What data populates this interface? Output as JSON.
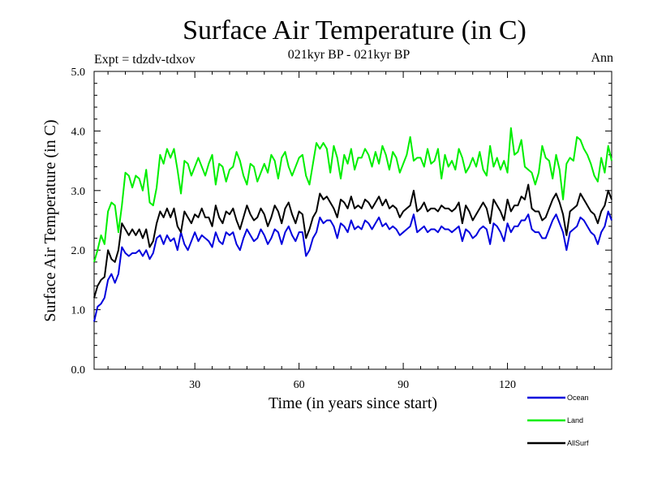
{
  "chart_data": {
    "type": "line",
    "title": "Surface Air Temperature (in C)",
    "subtitle": "021kyr BP - 021kyr BP",
    "left_note": "Expt = tdzdv-tdxov",
    "right_note": "Ann",
    "xlabel": "Time (in years since start)",
    "ylabel": "Surface Air Temperature (in C)",
    "xlim": [
      1,
      150
    ],
    "ylim": [
      0,
      5
    ],
    "xticks": [
      30,
      60,
      90,
      120
    ],
    "xtick_labels": [
      "30",
      "60",
      "90",
      "120"
    ],
    "yticks": [
      0,
      1,
      2,
      3,
      4,
      5
    ],
    "ytick_labels": [
      "0.0",
      "1.0",
      "2.0",
      "3.0",
      "4.0",
      "5.0"
    ],
    "x": [
      1,
      2,
      3,
      4,
      5,
      6,
      7,
      8,
      9,
      10,
      11,
      12,
      13,
      14,
      15,
      16,
      17,
      18,
      19,
      20,
      21,
      22,
      23,
      24,
      25,
      26,
      27,
      28,
      29,
      30,
      31,
      32,
      33,
      34,
      35,
      36,
      37,
      38,
      39,
      40,
      41,
      42,
      43,
      44,
      45,
      46,
      47,
      48,
      49,
      50,
      51,
      52,
      53,
      54,
      55,
      56,
      57,
      58,
      59,
      60,
      61,
      62,
      63,
      64,
      65,
      66,
      67,
      68,
      69,
      70,
      71,
      72,
      73,
      74,
      75,
      76,
      77,
      78,
      79,
      80,
      81,
      82,
      83,
      84,
      85,
      86,
      87,
      88,
      89,
      90,
      91,
      92,
      93,
      94,
      95,
      96,
      97,
      98,
      99,
      100,
      101,
      102,
      103,
      104,
      105,
      106,
      107,
      108,
      109,
      110,
      111,
      112,
      113,
      114,
      115,
      116,
      117,
      118,
      119,
      120,
      121,
      122,
      123,
      124,
      125,
      126,
      127,
      128,
      129,
      130,
      131,
      132,
      133,
      134,
      135,
      136,
      137,
      138,
      139,
      140,
      141,
      142,
      143,
      144,
      145,
      146,
      147,
      148,
      149,
      150
    ],
    "series": [
      {
        "name": "Ocean",
        "color": "#0000dd",
        "values": [
          0.8,
          1.05,
          1.1,
          1.2,
          1.5,
          1.6,
          1.45,
          1.6,
          2.05,
          1.95,
          1.9,
          1.95,
          1.95,
          2.0,
          1.9,
          2.0,
          1.85,
          1.95,
          2.2,
          2.25,
          2.1,
          2.25,
          2.15,
          2.2,
          2.0,
          2.3,
          2.1,
          2.0,
          2.15,
          2.3,
          2.15,
          2.25,
          2.2,
          2.15,
          2.05,
          2.3,
          2.15,
          2.1,
          2.3,
          2.25,
          2.3,
          2.1,
          2.0,
          2.2,
          2.35,
          2.25,
          2.15,
          2.2,
          2.35,
          2.25,
          2.1,
          2.2,
          2.35,
          2.3,
          2.1,
          2.3,
          2.4,
          2.25,
          2.15,
          2.3,
          2.3,
          1.9,
          2.0,
          2.2,
          2.3,
          2.55,
          2.45,
          2.5,
          2.5,
          2.4,
          2.2,
          2.45,
          2.4,
          2.3,
          2.5,
          2.35,
          2.4,
          2.35,
          2.5,
          2.45,
          2.35,
          2.45,
          2.55,
          2.4,
          2.45,
          2.35,
          2.4,
          2.35,
          2.25,
          2.3,
          2.35,
          2.4,
          2.6,
          2.3,
          2.35,
          2.4,
          2.3,
          2.35,
          2.35,
          2.3,
          2.4,
          2.35,
          2.35,
          2.3,
          2.35,
          2.4,
          2.15,
          2.35,
          2.3,
          2.2,
          2.25,
          2.35,
          2.4,
          2.35,
          2.1,
          2.45,
          2.4,
          2.3,
          2.15,
          2.45,
          2.3,
          2.4,
          2.4,
          2.5,
          2.5,
          2.6,
          2.35,
          2.3,
          2.3,
          2.2,
          2.2,
          2.35,
          2.5,
          2.6,
          2.45,
          2.3,
          2.0,
          2.3,
          2.35,
          2.4,
          2.55,
          2.5,
          2.4,
          2.3,
          2.25,
          2.1,
          2.3,
          2.4,
          2.65,
          2.5
        ]
      },
      {
        "name": "Land",
        "color": "#00ee00",
        "values": [
          1.8,
          2.0,
          2.25,
          2.1,
          2.65,
          2.8,
          2.75,
          2.3,
          2.75,
          3.3,
          3.25,
          3.05,
          3.25,
          3.2,
          3.0,
          3.35,
          2.8,
          2.75,
          3.05,
          3.6,
          3.45,
          3.7,
          3.55,
          3.7,
          3.35,
          2.95,
          3.5,
          3.45,
          3.25,
          3.4,
          3.55,
          3.4,
          3.25,
          3.45,
          3.6,
          3.1,
          3.45,
          3.4,
          3.15,
          3.35,
          3.4,
          3.65,
          3.5,
          3.25,
          3.1,
          3.45,
          3.4,
          3.15,
          3.3,
          3.45,
          3.3,
          3.6,
          3.5,
          3.2,
          3.55,
          3.65,
          3.4,
          3.25,
          3.4,
          3.55,
          3.6,
          3.25,
          3.1,
          3.45,
          3.8,
          3.7,
          3.8,
          3.7,
          3.3,
          3.75,
          3.55,
          3.2,
          3.6,
          3.45,
          3.7,
          3.35,
          3.55,
          3.55,
          3.7,
          3.6,
          3.4,
          3.65,
          3.45,
          3.75,
          3.6,
          3.35,
          3.65,
          3.55,
          3.3,
          3.45,
          3.6,
          3.9,
          3.5,
          3.55,
          3.55,
          3.4,
          3.7,
          3.45,
          3.5,
          3.7,
          3.2,
          3.6,
          3.4,
          3.5,
          3.35,
          3.7,
          3.55,
          3.3,
          3.4,
          3.55,
          3.4,
          3.65,
          3.35,
          3.25,
          3.75,
          3.4,
          3.55,
          3.35,
          3.5,
          3.3,
          4.05,
          3.6,
          3.65,
          3.85,
          3.4,
          3.35,
          3.3,
          3.1,
          3.3,
          3.75,
          3.55,
          3.5,
          3.2,
          3.6,
          3.35,
          2.85,
          3.45,
          3.55,
          3.5,
          3.9,
          3.85,
          3.7,
          3.6,
          3.45,
          3.25,
          3.15,
          3.55,
          3.3,
          3.75,
          3.5
        ]
      },
      {
        "name": "AllSurf",
        "color": "#000000",
        "values": [
          1.2,
          1.4,
          1.5,
          1.55,
          2.0,
          1.85,
          1.8,
          2.0,
          2.45,
          2.35,
          2.25,
          2.35,
          2.25,
          2.35,
          2.2,
          2.35,
          2.05,
          2.15,
          2.45,
          2.65,
          2.55,
          2.7,
          2.55,
          2.7,
          2.4,
          2.3,
          2.65,
          2.55,
          2.45,
          2.6,
          2.55,
          2.7,
          2.55,
          2.55,
          2.4,
          2.75,
          2.55,
          2.45,
          2.65,
          2.6,
          2.7,
          2.5,
          2.35,
          2.55,
          2.75,
          2.6,
          2.5,
          2.55,
          2.7,
          2.6,
          2.4,
          2.55,
          2.75,
          2.65,
          2.45,
          2.7,
          2.8,
          2.6,
          2.45,
          2.65,
          2.6,
          2.2,
          2.35,
          2.55,
          2.65,
          2.95,
          2.85,
          2.9,
          2.8,
          2.7,
          2.55,
          2.85,
          2.8,
          2.7,
          2.9,
          2.7,
          2.75,
          2.7,
          2.85,
          2.8,
          2.7,
          2.8,
          2.9,
          2.75,
          2.85,
          2.7,
          2.75,
          2.7,
          2.55,
          2.65,
          2.7,
          2.75,
          3.0,
          2.65,
          2.7,
          2.8,
          2.65,
          2.7,
          2.7,
          2.65,
          2.75,
          2.7,
          2.7,
          2.65,
          2.7,
          2.8,
          2.45,
          2.75,
          2.65,
          2.5,
          2.6,
          2.7,
          2.8,
          2.7,
          2.45,
          2.85,
          2.75,
          2.65,
          2.5,
          2.85,
          2.65,
          2.75,
          2.75,
          2.9,
          2.85,
          3.1,
          2.7,
          2.65,
          2.65,
          2.5,
          2.55,
          2.7,
          2.85,
          2.95,
          2.8,
          2.6,
          2.25,
          2.65,
          2.7,
          2.75,
          2.95,
          2.85,
          2.75,
          2.65,
          2.6,
          2.45,
          2.65,
          2.75,
          3.0,
          2.85
        ]
      }
    ],
    "legend_position": "bottom-right",
    "grid": false
  }
}
